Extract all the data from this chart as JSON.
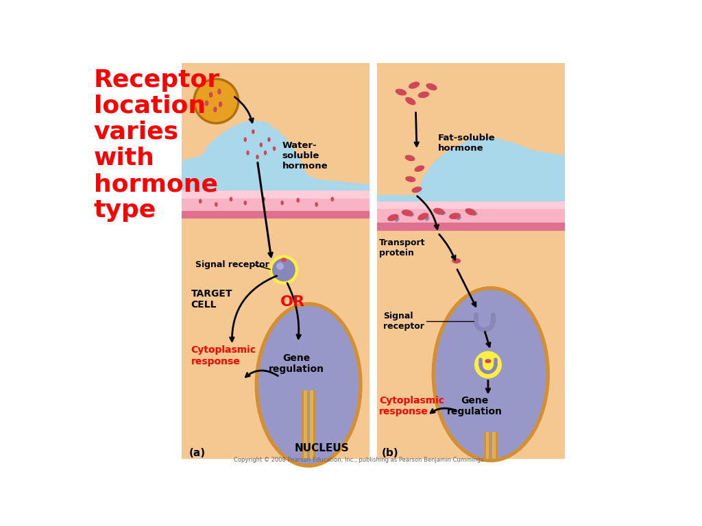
{
  "title_text": "Receptor\nlocation\nvaries\nwith\nhormone\ntype",
  "title_color": "#FF0000",
  "title_fontsize": 26,
  "bg_color": "#FFFFFF",
  "panel_a_label": "(a)",
  "panel_b_label": "(b)",
  "water_soluble_label": "Water-\nsoluble\nhormone",
  "fat_soluble_label": "Fat-soluble\nhormone",
  "signal_receptor_a": "Signal receptor",
  "target_cell": "TARGET\nCELL",
  "or_label": "OR",
  "cytoplasmic_response": "Cytoplasmic\nresponse",
  "gene_regulation": "Gene\nregulation",
  "nucleus_label": "NUCLEUS",
  "transport_protein": "Transport\nprotein",
  "signal_receptor_b": "Signal\nreceptor",
  "cytoplasmic_response_b": "Cytoplasmic\nresponse",
  "gene_regulation_b": "Gene\nregulation",
  "copyright": "Copyright © 2008 Pearson Education, Inc., publishing as Pearson Benjamin Cummings.",
  "blue_bg": "#A8D8EA",
  "cell_bg": "#F5C892",
  "blood_top_color": "#F8B4C4",
  "blood_bot_color": "#F090A8",
  "nucleus_color": "#9898C8",
  "cell_border_color": "#D49030",
  "hormone_color": "#D04858",
  "receptor_color": "#8888B8",
  "yellow_color": "#FFEE44",
  "vesicle_color": "#E8A020",
  "transport_color": "#8888AA"
}
